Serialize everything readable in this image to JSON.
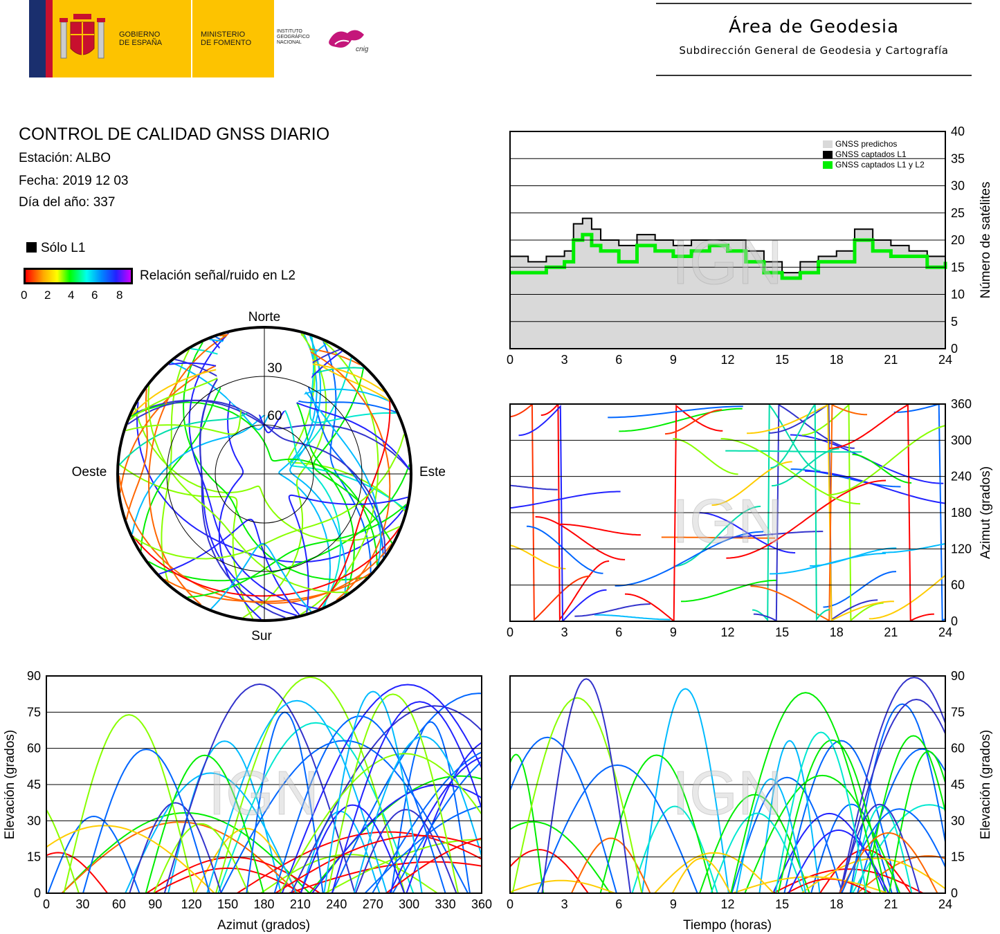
{
  "header": {
    "gobierno": [
      "GOBIERNO",
      "DE ESPAÑA"
    ],
    "ministerio": [
      "MINISTERIO",
      "DE FOMENTO"
    ],
    "instituto": [
      "INSTITUTO",
      "GEOGRÁFICO",
      "NACIONAL"
    ],
    "cnig": "cnig",
    "area_title": "Área de Geodesia",
    "area_subtitle": "Subdirección General de Geodesia y Cartografía"
  },
  "info": {
    "title": "CONTROL DE CALIDAD GNSS DIARIO",
    "station": "Estación: ALBO",
    "date": "Fecha: 2019 12 03",
    "doy": "Día del año: 337"
  },
  "legend": {
    "l1_only": "Sólo L1",
    "snr_label": "Relación señal/ruido en L2",
    "snr_ticks": [
      "0",
      "2",
      "4",
      "6",
      "8"
    ]
  },
  "watermark": "IGN",
  "colors": {
    "predicted": "#d9d9d9",
    "l1": "#000000",
    "l1l2": "#00ee00"
  },
  "chart_data": [
    {
      "id": "satellite-count",
      "type": "area",
      "xlabel": "",
      "ylabel": "Número de satélites",
      "xlim": [
        0,
        24
      ],
      "ylim": [
        0,
        40
      ],
      "xticks": [
        "0",
        "3",
        "6",
        "9",
        "12",
        "15",
        "18",
        "21",
        "24"
      ],
      "yticks": [
        "0",
        "5",
        "10",
        "15",
        "20",
        "25",
        "30",
        "35",
        "40"
      ],
      "grid": "horizontal",
      "legend_position": "top-right",
      "x": [
        0,
        1,
        2,
        3,
        3.5,
        4,
        4.5,
        5,
        6,
        7,
        8,
        9,
        10,
        11,
        12,
        13,
        14,
        15,
        16,
        17,
        18,
        19,
        20,
        21,
        22,
        23,
        24
      ],
      "series": [
        {
          "name": "GNSS predichos",
          "values": [
            17,
            16,
            17,
            18,
            23,
            24,
            22,
            20,
            19,
            21,
            20,
            19,
            20,
            20,
            20,
            18,
            16,
            14,
            16,
            17,
            18,
            22,
            20,
            19,
            18,
            17,
            18
          ]
        },
        {
          "name": "GNSS captados L1",
          "values": [
            17,
            16,
            17,
            18,
            23,
            24,
            22,
            20,
            19,
            21,
            20,
            19,
            20,
            20,
            20,
            18,
            16,
            14,
            16,
            17,
            18,
            22,
            20,
            19,
            18,
            17,
            18
          ]
        },
        {
          "name": "GNSS captados L1 y L2",
          "values": [
            14,
            14,
            15,
            16,
            20,
            21,
            19,
            18,
            16,
            19,
            18,
            17,
            18,
            19,
            18,
            16,
            14,
            13,
            14,
            16,
            16,
            20,
            18,
            17,
            17,
            15,
            16
          ]
        }
      ]
    },
    {
      "id": "skyplot",
      "type": "scatter",
      "projection": "polar",
      "direction_labels": {
        "north": "Norte",
        "south": "Sur",
        "west": "Oeste",
        "east": "Este"
      },
      "ring_labels": [
        "30",
        "60"
      ]
    },
    {
      "id": "azimuth-vs-time",
      "type": "scatter",
      "xlabel": "",
      "ylabel": "Azimut (grados)",
      "xlim": [
        0,
        24
      ],
      "ylim": [
        0,
        360
      ],
      "xticks": [
        "0",
        "3",
        "6",
        "9",
        "12",
        "15",
        "18",
        "21",
        "24"
      ],
      "yticks": [
        "0",
        "60",
        "120",
        "180",
        "240",
        "300",
        "360"
      ],
      "grid": "horizontal"
    },
    {
      "id": "elevation-vs-azimuth",
      "type": "scatter",
      "xlabel": "Azimut (grados)",
      "ylabel": "Elevación (grados)",
      "xlim": [
        0,
        360
      ],
      "ylim": [
        0,
        90
      ],
      "xticks": [
        "0",
        "30",
        "60",
        "90",
        "120",
        "150",
        "180",
        "210",
        "240",
        "270",
        "300",
        "330",
        "360"
      ],
      "yticks": [
        "0",
        "15",
        "30",
        "45",
        "60",
        "75",
        "90"
      ],
      "grid": "horizontal"
    },
    {
      "id": "elevation-vs-time",
      "type": "scatter",
      "xlabel": "Tiempo (horas)",
      "ylabel": "Elevación (grados)",
      "xlim": [
        0,
        24
      ],
      "ylim": [
        0,
        90
      ],
      "xticks": [
        "0",
        "3",
        "6",
        "9",
        "12",
        "15",
        "18",
        "21",
        "24"
      ],
      "yticks": [
        "0",
        "15",
        "30",
        "45",
        "60",
        "75",
        "90"
      ],
      "grid": "horizontal"
    }
  ]
}
